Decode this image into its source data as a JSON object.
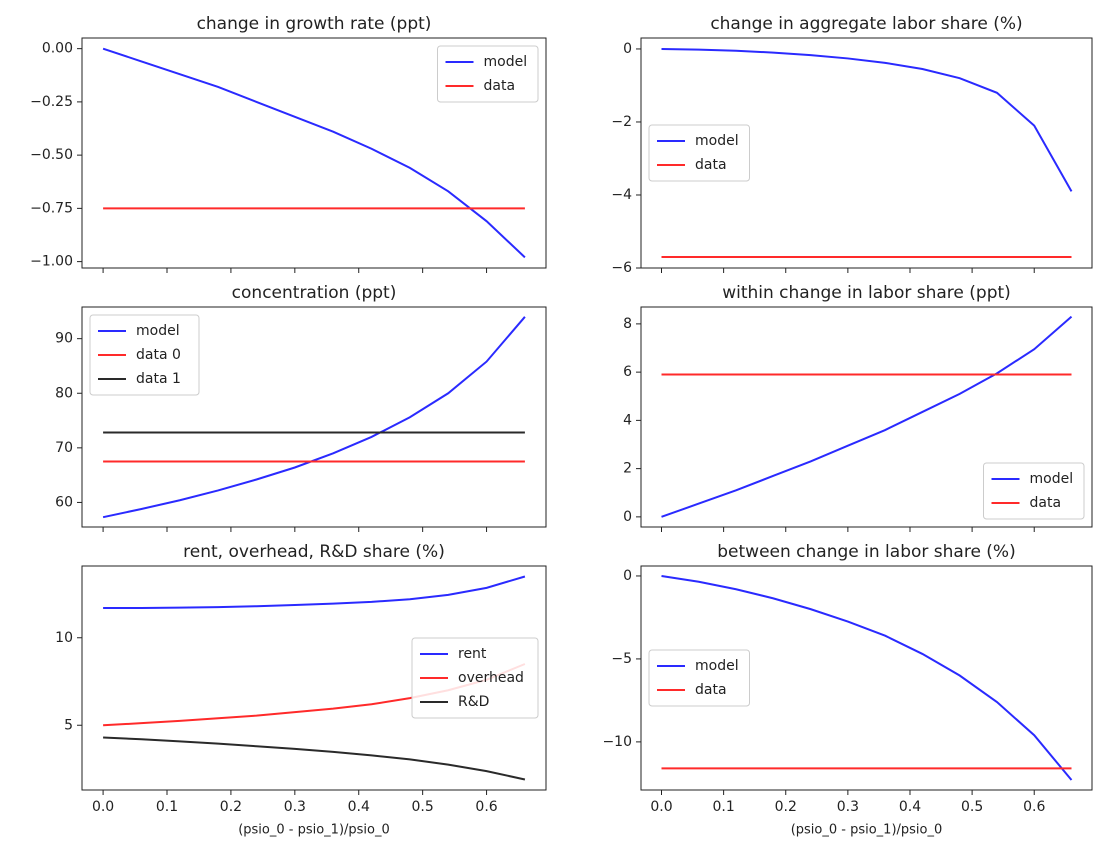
{
  "chart_data": [
    {
      "type": "line",
      "title": "change in growth rate (ppt)",
      "x": [
        0,
        0.06,
        0.12,
        0.18,
        0.24,
        0.3,
        0.36,
        0.42,
        0.48,
        0.54,
        0.6,
        0.66
      ],
      "series": [
        {
          "name": "model",
          "color": "#2a2aff",
          "values": [
            0,
            -0.06,
            -0.12,
            -0.18,
            -0.25,
            -0.32,
            -0.39,
            -0.47,
            -0.56,
            -0.67,
            -0.81,
            -0.98
          ]
        },
        {
          "name": "data",
          "color": "#ff2a2a",
          "values": [
            -0.75,
            -0.75,
            -0.75,
            -0.75,
            -0.75,
            -0.75,
            -0.75,
            -0.75,
            -0.75,
            -0.75,
            -0.75,
            -0.75
          ]
        }
      ],
      "xlim": [
        -0.033,
        0.693
      ],
      "xticks": [
        0,
        0.1,
        0.2,
        0.3,
        0.4,
        0.5,
        0.6
      ],
      "show_xtick_labels": false,
      "ylim": [
        -1.03,
        0.05
      ],
      "yticks": [
        {
          "value": 0,
          "label": "0.00"
        },
        {
          "value": -0.25,
          "label": "−0.25"
        },
        {
          "value": -0.5,
          "label": "−0.50"
        },
        {
          "value": -0.75,
          "label": "−0.75"
        },
        {
          "value": -1,
          "label": "−1.00"
        }
      ],
      "legend": "upper right"
    },
    {
      "type": "line",
      "title": "change in aggregate labor share (%)",
      "x": [
        0,
        0.06,
        0.12,
        0.18,
        0.24,
        0.3,
        0.36,
        0.42,
        0.48,
        0.54,
        0.6,
        0.66
      ],
      "series": [
        {
          "name": "model",
          "color": "#2a2aff",
          "values": [
            0,
            -0.02,
            -0.05,
            -0.1,
            -0.17,
            -0.26,
            -0.38,
            -0.55,
            -0.8,
            -1.2,
            -2.1,
            -3.9
          ]
        },
        {
          "name": "data",
          "color": "#ff2a2a",
          "values": [
            -5.7,
            -5.7,
            -5.7,
            -5.7,
            -5.7,
            -5.7,
            -5.7,
            -5.7,
            -5.7,
            -5.7,
            -5.7,
            -5.7
          ]
        }
      ],
      "xlim": [
        -0.033,
        0.693
      ],
      "xticks": [
        0,
        0.1,
        0.2,
        0.3,
        0.4,
        0.5,
        0.6
      ],
      "show_xtick_labels": false,
      "ylim": [
        -6.0,
        0.3
      ],
      "yticks": [
        0,
        {
          "value": -2,
          "label": "−2"
        },
        {
          "value": -4,
          "label": "−4"
        },
        {
          "value": -6,
          "label": "−6"
        }
      ],
      "legend": "center left"
    },
    {
      "type": "line",
      "title": "concentration (ppt)",
      "x": [
        0,
        0.06,
        0.12,
        0.18,
        0.24,
        0.3,
        0.36,
        0.42,
        0.48,
        0.54,
        0.6,
        0.66
      ],
      "series": [
        {
          "name": "model",
          "color": "#2a2aff",
          "values": [
            57.3,
            58.8,
            60.4,
            62.2,
            64.2,
            66.4,
            69.0,
            72.0,
            75.6,
            80.0,
            85.8,
            94.0
          ]
        },
        {
          "name": "data 0",
          "color": "#ff2a2a",
          "values": [
            67.5,
            67.5,
            67.5,
            67.5,
            67.5,
            67.5,
            67.5,
            67.5,
            67.5,
            67.5,
            67.5,
            67.5
          ]
        },
        {
          "name": "data 1",
          "color": "#2a2a2a",
          "values": [
            72.8,
            72.8,
            72.8,
            72.8,
            72.8,
            72.8,
            72.8,
            72.8,
            72.8,
            72.8,
            72.8,
            72.8
          ]
        }
      ],
      "xlim": [
        -0.033,
        0.693
      ],
      "xticks": [
        0,
        0.1,
        0.2,
        0.3,
        0.4,
        0.5,
        0.6
      ],
      "show_xtick_labels": false,
      "ylim": [
        55.5,
        95.8
      ],
      "yticks": [
        60,
        70,
        80,
        90
      ],
      "legend": "upper left"
    },
    {
      "type": "line",
      "title": "within change in labor share (ppt)",
      "x": [
        0,
        0.06,
        0.12,
        0.18,
        0.24,
        0.3,
        0.36,
        0.42,
        0.48,
        0.54,
        0.6,
        0.66
      ],
      "series": [
        {
          "name": "model",
          "color": "#2a2aff",
          "values": [
            0,
            0.55,
            1.1,
            1.7,
            2.3,
            2.95,
            3.6,
            4.35,
            5.1,
            5.95,
            6.95,
            8.3
          ]
        },
        {
          "name": "data",
          "color": "#ff2a2a",
          "values": [
            5.9,
            5.9,
            5.9,
            5.9,
            5.9,
            5.9,
            5.9,
            5.9,
            5.9,
            5.9,
            5.9,
            5.9
          ]
        }
      ],
      "xlim": [
        -0.033,
        0.693
      ],
      "xticks": [
        0,
        0.1,
        0.2,
        0.3,
        0.4,
        0.5,
        0.6
      ],
      "show_xtick_labels": false,
      "ylim": [
        -0.42,
        8.7
      ],
      "yticks": [
        0,
        2,
        4,
        6,
        8
      ],
      "legend": "lower right"
    },
    {
      "type": "line",
      "title": "rent, overhead, R&D share (%)",
      "x": [
        0,
        0.06,
        0.12,
        0.18,
        0.24,
        0.3,
        0.36,
        0.42,
        0.48,
        0.54,
        0.6,
        0.66
      ],
      "series": [
        {
          "name": "rent",
          "color": "#2a2aff",
          "values": [
            11.7,
            11.7,
            11.72,
            11.75,
            11.8,
            11.87,
            11.95,
            12.05,
            12.2,
            12.45,
            12.85,
            13.5
          ]
        },
        {
          "name": "overhead",
          "color": "#ff2a2a",
          "values": [
            5.0,
            5.12,
            5.25,
            5.4,
            5.55,
            5.75,
            5.95,
            6.2,
            6.55,
            7.0,
            7.6,
            8.5
          ]
        },
        {
          "name": "R&D",
          "color": "#2a2a2a",
          "values": [
            4.3,
            4.2,
            4.08,
            3.95,
            3.8,
            3.65,
            3.48,
            3.28,
            3.05,
            2.75,
            2.38,
            1.9
          ]
        }
      ],
      "xlim": [
        -0.033,
        0.693
      ],
      "xticks": [
        {
          "value": 0,
          "label": "0.0"
        },
        0.1,
        0.2,
        0.3,
        0.4,
        0.5,
        0.6
      ],
      "show_xtick_labels": true,
      "xlabel": "(psio_0 - psio_1)/psio_0",
      "ylim": [
        1.3,
        14.1
      ],
      "yticks": [
        5,
        10
      ],
      "legend": "center right"
    },
    {
      "type": "line",
      "title": "between change in labor share (%)",
      "x": [
        0,
        0.06,
        0.12,
        0.18,
        0.24,
        0.3,
        0.36,
        0.42,
        0.48,
        0.54,
        0.6,
        0.66
      ],
      "series": [
        {
          "name": "model",
          "color": "#2a2aff",
          "values": [
            0,
            -0.35,
            -0.8,
            -1.35,
            -2.0,
            -2.75,
            -3.6,
            -4.7,
            -6.0,
            -7.6,
            -9.6,
            -12.3
          ]
        },
        {
          "name": "data",
          "color": "#ff2a2a",
          "values": [
            -11.6,
            -11.6,
            -11.6,
            -11.6,
            -11.6,
            -11.6,
            -11.6,
            -11.6,
            -11.6,
            -11.6,
            -11.6,
            -11.6
          ]
        }
      ],
      "xlim": [
        -0.033,
        0.693
      ],
      "xticks": [
        {
          "value": 0,
          "label": "0.0"
        },
        0.1,
        0.2,
        0.3,
        0.4,
        0.5,
        0.6
      ],
      "show_xtick_labels": true,
      "xlabel": "(psio_0 - psio_1)/psio_0",
      "ylim": [
        -12.9,
        0.6
      ],
      "yticks": [
        0,
        {
          "value": -5,
          "label": "−5"
        },
        {
          "value": -10,
          "label": "−10"
        }
      ],
      "legend": "center left"
    }
  ]
}
